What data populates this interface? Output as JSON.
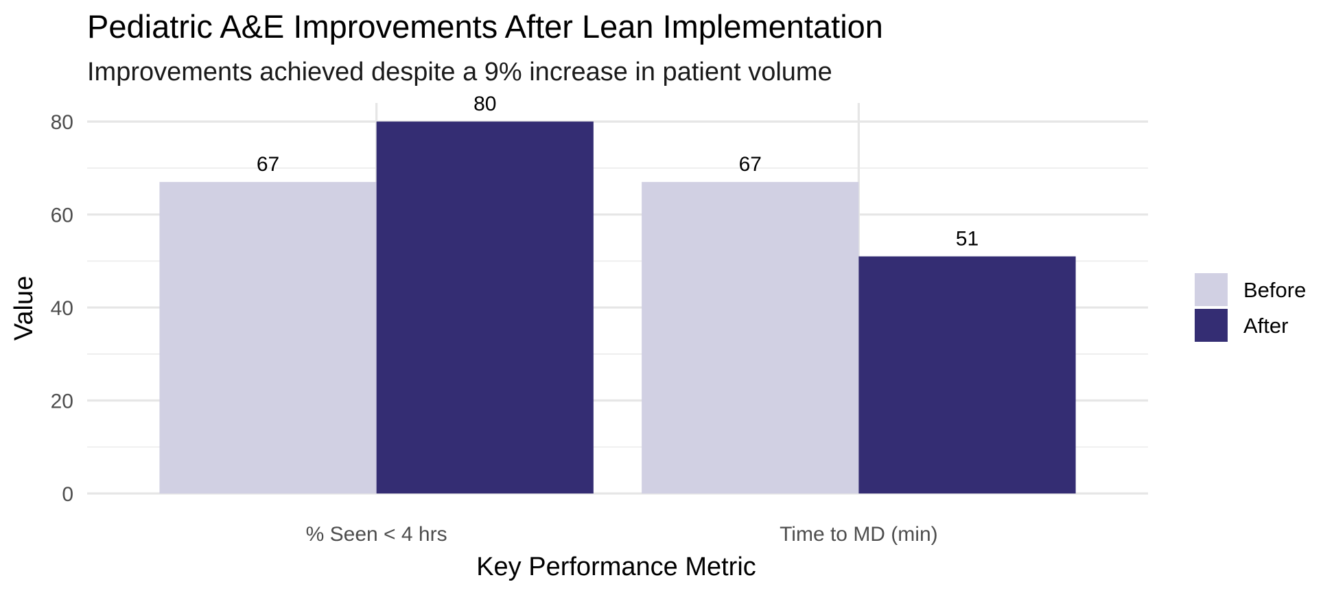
{
  "chart_data": {
    "type": "bar",
    "title": "Pediatric A&E Improvements After Lean Implementation",
    "subtitle": "Improvements achieved despite a 9% increase in patient volume",
    "xlabel": "Key Performance Metric",
    "ylabel": "Value",
    "categories": [
      "% Seen < 4 hrs",
      "Time to MD (min)"
    ],
    "series": [
      {
        "name": "Before",
        "values": [
          67,
          67
        ],
        "color": "#d1d0e3"
      },
      {
        "name": "After",
        "values": [
          80,
          51
        ],
        "color": "#342d73"
      }
    ],
    "ylim": [
      0,
      84
    ],
    "yticks": [
      0,
      20,
      40,
      60,
      80
    ],
    "grid": true,
    "legend_position": "right"
  }
}
